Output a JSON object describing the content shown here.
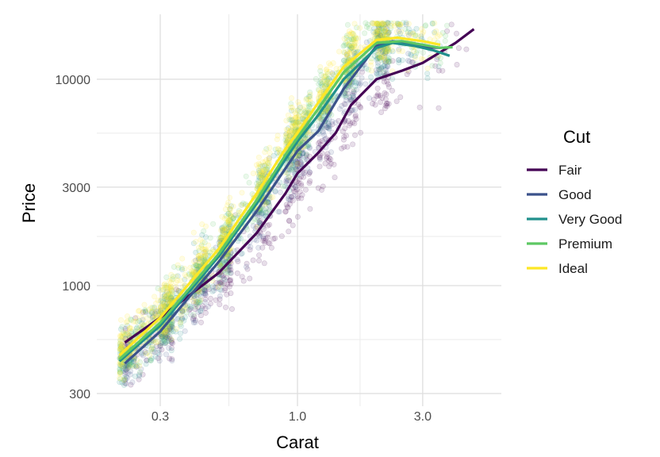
{
  "chart_data": {
    "type": "scatter",
    "title": "",
    "xlabel": "Carat",
    "ylabel": "Price",
    "x_scale": "log10",
    "y_scale": "log10",
    "xlim": [
      0.2,
      5.0
    ],
    "ylim": [
      320,
      18000
    ],
    "x_ticks": [
      {
        "value": 0.3,
        "label": "0.3"
      },
      {
        "value": 1.0,
        "label": "1.0"
      },
      {
        "value": 3.0,
        "label": "3.0"
      }
    ],
    "x_minor_ticks": [
      0.548,
      1.732
    ],
    "y_ticks": [
      {
        "value": 300,
        "label": "300"
      },
      {
        "value": 1000,
        "label": "1000"
      },
      {
        "value": 3000,
        "label": "3000"
      },
      {
        "value": 10000,
        "label": "10000"
      }
    ],
    "y_minor_ticks": [
      548,
      1732,
      5477
    ],
    "grid": true,
    "legend": {
      "title": "Cut",
      "position": "right"
    },
    "series": [
      {
        "name": "Fair",
        "color": "#440154",
        "smooth": [
          [
            0.22,
            530
          ],
          [
            0.3,
            700
          ],
          [
            0.5,
            1150
          ],
          [
            0.7,
            1800
          ],
          [
            0.9,
            2800
          ],
          [
            1.0,
            3500
          ],
          [
            1.2,
            4400
          ],
          [
            1.4,
            5500
          ],
          [
            1.6,
            7500
          ],
          [
            2.0,
            10000
          ],
          [
            2.5,
            11000
          ],
          [
            3.0,
            12000
          ],
          [
            4.0,
            15000
          ],
          [
            4.7,
            17500
          ]
        ],
        "points": {
          "count": 380,
          "x_range": [
            0.22,
            4.5
          ],
          "spread": 0.16,
          "offset": -0.12
        }
      },
      {
        "name": "Good",
        "color": "#3B528B",
        "smooth": [
          [
            0.22,
            420
          ],
          [
            0.3,
            600
          ],
          [
            0.5,
            1300
          ],
          [
            0.7,
            2300
          ],
          [
            0.9,
            3700
          ],
          [
            1.0,
            4500
          ],
          [
            1.2,
            5600
          ],
          [
            1.5,
            9000
          ],
          [
            2.0,
            14500
          ],
          [
            2.3,
            15300
          ],
          [
            2.6,
            15000
          ],
          [
            3.0,
            14300
          ],
          [
            3.5,
            14200
          ]
        ],
        "points": {
          "count": 500,
          "x_range": [
            0.22,
            3.0
          ],
          "spread": 0.15,
          "offset": -0.04
        }
      },
      {
        "name": "Very Good",
        "color": "#21908C",
        "smooth": [
          [
            0.21,
            430
          ],
          [
            0.3,
            640
          ],
          [
            0.5,
            1380
          ],
          [
            0.7,
            2500
          ],
          [
            0.9,
            4100
          ],
          [
            1.0,
            5000
          ],
          [
            1.2,
            6700
          ],
          [
            1.5,
            10000
          ],
          [
            2.0,
            14200
          ],
          [
            2.3,
            15000
          ],
          [
            2.8,
            14500
          ],
          [
            3.3,
            13800
          ],
          [
            3.8,
            13000
          ]
        ],
        "points": {
          "count": 650,
          "x_range": [
            0.21,
            3.5
          ],
          "spread": 0.14,
          "offset": 0.0
        }
      },
      {
        "name": "Premium",
        "color": "#5DC863",
        "smooth": [
          [
            0.21,
            440
          ],
          [
            0.3,
            660
          ],
          [
            0.5,
            1420
          ],
          [
            0.7,
            2600
          ],
          [
            0.9,
            4300
          ],
          [
            1.0,
            5200
          ],
          [
            1.2,
            7200
          ],
          [
            1.5,
            10800
          ],
          [
            2.0,
            15000
          ],
          [
            2.5,
            15300
          ],
          [
            3.0,
            14700
          ],
          [
            3.5,
            14200
          ],
          [
            3.9,
            14300
          ]
        ],
        "points": {
          "count": 750,
          "x_range": [
            0.21,
            3.8
          ],
          "spread": 0.14,
          "offset": 0.02
        }
      },
      {
        "name": "Ideal",
        "color": "#FDE725",
        "smooth": [
          [
            0.21,
            460
          ],
          [
            0.3,
            700
          ],
          [
            0.5,
            1500
          ],
          [
            0.7,
            2800
          ],
          [
            0.9,
            4600
          ],
          [
            1.0,
            5500
          ],
          [
            1.2,
            7700
          ],
          [
            1.5,
            11500
          ],
          [
            2.0,
            15500
          ],
          [
            2.4,
            15900
          ],
          [
            3.0,
            15300
          ],
          [
            3.5,
            14700
          ]
        ],
        "points": {
          "count": 900,
          "x_range": [
            0.21,
            3.5
          ],
          "spread": 0.14,
          "offset": 0.03
        }
      }
    ]
  }
}
